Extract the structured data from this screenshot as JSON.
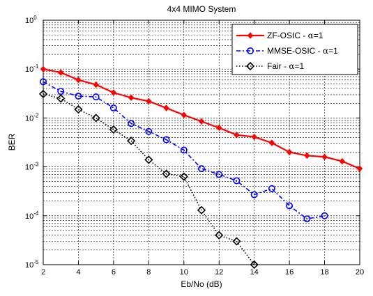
{
  "chart_data": {
    "type": "line",
    "title": "4x4 MIMO System",
    "xlabel": "Eb/No (dB)",
    "ylabel": "BER",
    "xlim": [
      2,
      20
    ],
    "ylim": [
      1e-05,
      1
    ],
    "yscale": "log",
    "grid": true,
    "legend_position": "top-right",
    "x_ticks": [
      2,
      4,
      6,
      8,
      10,
      12,
      14,
      16,
      18,
      20
    ],
    "y_ticks": [
      {
        "value": 1,
        "base": "10",
        "exp": "0"
      },
      {
        "value": 0.1,
        "base": "10",
        "exp": "-1"
      },
      {
        "value": 0.01,
        "base": "10",
        "exp": "-2"
      },
      {
        "value": 0.001,
        "base": "10",
        "exp": "-3"
      },
      {
        "value": 0.0001,
        "base": "10",
        "exp": "-4"
      },
      {
        "value": 1e-05,
        "base": "10",
        "exp": "-5"
      }
    ],
    "series": [
      {
        "name": "ZF-OSIC - α=1",
        "label_prefix": "ZF-OSIC - ",
        "label_greek": "α",
        "label_suffix": "=1",
        "color": "#ff0000",
        "line_style": "solid",
        "marker": "diamond",
        "x": [
          2,
          3,
          4,
          5,
          6,
          7,
          8,
          9,
          10,
          11,
          12,
          13,
          14,
          15,
          16,
          17,
          18,
          19,
          20
        ],
        "values": [
          0.1,
          0.085,
          0.06,
          0.048,
          0.033,
          0.026,
          0.022,
          0.016,
          0.0115,
          0.0085,
          0.0063,
          0.0045,
          0.0041,
          0.0031,
          0.002,
          0.0017,
          0.0016,
          0.0013,
          0.00092
        ]
      },
      {
        "name": "MMSE-OSIC - α=1",
        "label_prefix": "MMSE-OSIC - ",
        "label_greek": "α",
        "label_suffix": "=1",
        "color": "#0000ff",
        "line_style": "dashdot",
        "marker": "circle",
        "x": [
          2,
          3,
          4,
          5,
          6,
          7,
          8,
          9,
          10,
          11,
          12,
          13,
          14,
          15,
          16,
          17,
          18
        ],
        "values": [
          0.055,
          0.035,
          0.028,
          0.027,
          0.016,
          0.0077,
          0.0053,
          0.0036,
          0.0022,
          0.00092,
          0.0007,
          0.00052,
          0.00027,
          0.00036,
          0.00016,
          8.65e-05,
          0.0001
        ]
      },
      {
        "name": "Fair - α=1",
        "label_prefix": "Fair - ",
        "label_greek": "α",
        "label_suffix": "=1",
        "color": "#000000",
        "line_style": "dotted",
        "marker": "diamond-open",
        "x": [
          2,
          3,
          4,
          5,
          6,
          7,
          8,
          9,
          10,
          11,
          12,
          13,
          14
        ],
        "values": [
          0.031,
          0.025,
          0.015,
          0.01,
          0.0058,
          0.0034,
          0.0014,
          0.00072,
          0.00063,
          0.00013,
          4e-05,
          3e-05,
          1e-05
        ]
      }
    ]
  }
}
